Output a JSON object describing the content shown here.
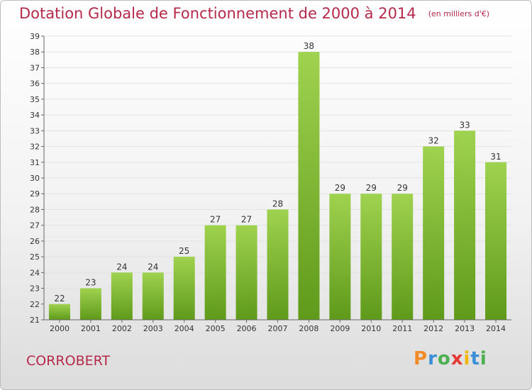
{
  "header": {
    "title": "Dotation Globale de Fonctionnement de 2000 à 2014",
    "unit": "(en milliers d'€)"
  },
  "footer": {
    "commune": "CORROBERT",
    "logo": "Proxiti",
    "logo_letter_colors": [
      "#f28c28",
      "#3a8fd6",
      "#4caf50",
      "#e53935",
      "#f2b705",
      "#3a8fd6",
      "#4caf50"
    ]
  },
  "colors": {
    "bar_top": "#9fd24f",
    "bar_bottom": "#5f9a1a",
    "title": "#b5294a"
  },
  "chart_data": {
    "type": "bar",
    "categories": [
      "2000",
      "2001",
      "2002",
      "2003",
      "2004",
      "2005",
      "2006",
      "2007",
      "2008",
      "2009",
      "2010",
      "2011",
      "2012",
      "2013",
      "2014"
    ],
    "values": [
      22,
      23,
      24,
      24,
      25,
      27,
      27,
      28,
      38,
      29,
      29,
      29,
      32,
      33,
      31
    ],
    "ylim": [
      21,
      39
    ],
    "yticks": [
      21,
      22,
      23,
      24,
      25,
      26,
      27,
      28,
      29,
      30,
      31,
      32,
      33,
      34,
      35,
      36,
      37,
      38,
      39
    ],
    "grid": true
  }
}
